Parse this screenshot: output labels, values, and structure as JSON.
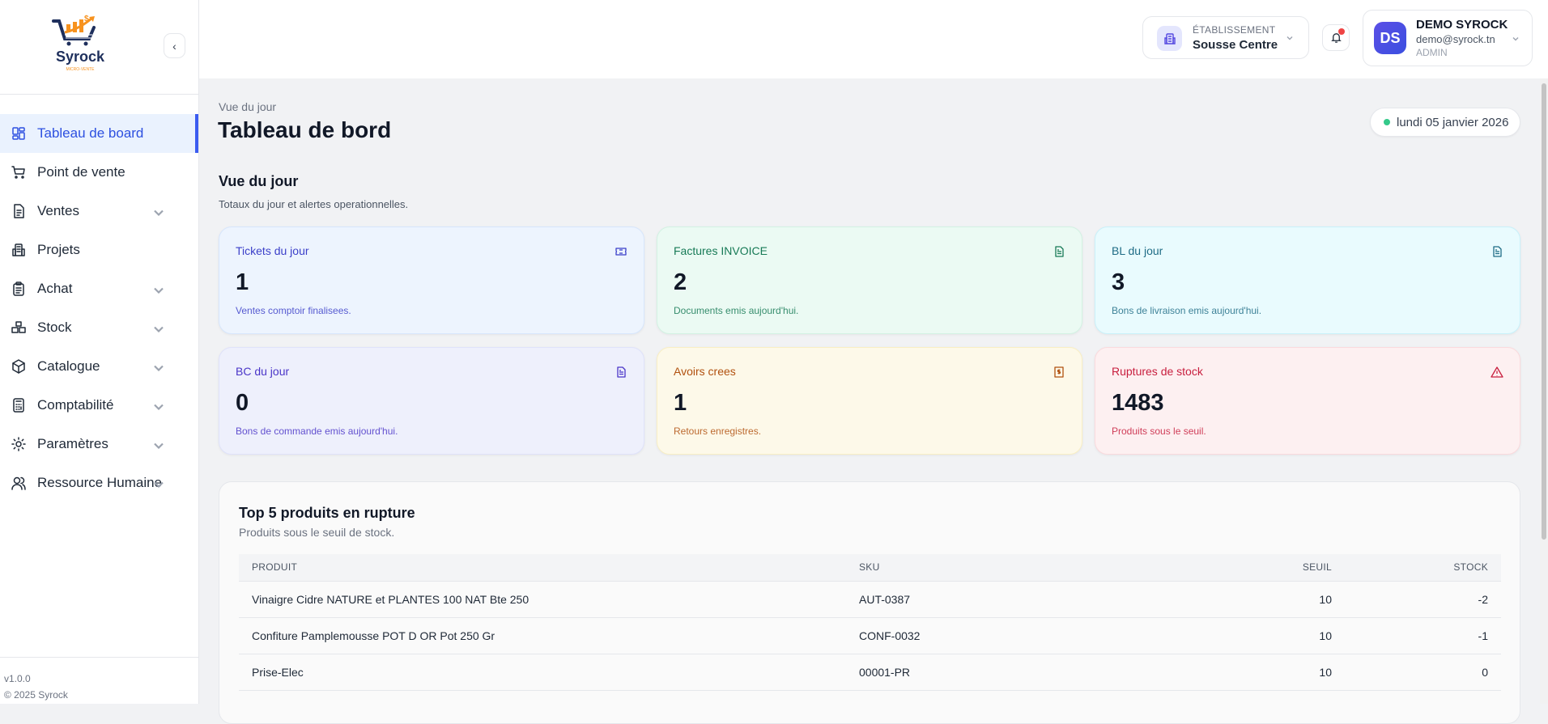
{
  "brand": {
    "name": "Syrock",
    "tagline": "MICRO-VENTE"
  },
  "sidebar": {
    "items": [
      {
        "label": "Tableau de board",
        "icon": "dashboard-icon",
        "active": true,
        "expandable": false
      },
      {
        "label": "Point de vente",
        "icon": "cart-icon",
        "expandable": false
      },
      {
        "label": "Ventes",
        "icon": "document-icon",
        "expandable": true
      },
      {
        "label": "Projets",
        "icon": "building-icon",
        "expandable": false
      },
      {
        "label": "Achat",
        "icon": "clipboard-icon",
        "expandable": true
      },
      {
        "label": "Stock",
        "icon": "boxes-icon",
        "expandable": true
      },
      {
        "label": "Catalogue",
        "icon": "package-icon",
        "expandable": true
      },
      {
        "label": "Comptabilité",
        "icon": "calculator-icon",
        "expandable": true
      },
      {
        "label": "Paramètres",
        "icon": "gear-icon",
        "expandable": true
      },
      {
        "label": "Ressource Humaine",
        "icon": "users-icon",
        "expandable": true
      }
    ],
    "version": "v1.0.0",
    "copyright": "© 2025 Syrock"
  },
  "header": {
    "etablissement_label": "ÉTABLISSEMENT",
    "etablissement_value": "Sousse Centre",
    "user": {
      "initials": "DS",
      "name": "DEMO SYROCK",
      "email": "demo@syrock.tn",
      "role": "ADMIN"
    }
  },
  "page": {
    "eyebrow": "Vue du jour",
    "title": "Tableau de bord",
    "date": "lundi 05 janvier 2026",
    "section_title": "Vue du jour",
    "section_desc": "Totaux du jour et alertes operationnelles."
  },
  "cards": [
    {
      "title": "Tickets du jour",
      "value": "1",
      "desc": "Ventes comptoir finalisees.",
      "icon": "ticket-icon",
      "bg": "#edf4fe",
      "border": "#d7e6fc",
      "color": "#3b3fc9"
    },
    {
      "title": "Factures INVOICE",
      "value": "2",
      "desc": "Documents emis aujourd'hui.",
      "icon": "file-icon",
      "bg": "#ebfaf3",
      "border": "#d3f2e3",
      "color": "#177a56"
    },
    {
      "title": "BL du jour",
      "value": "3",
      "desc": "Bons de livraison emis aujourd'hui.",
      "icon": "file-icon",
      "bg": "#e9fbfe",
      "border": "#c9f1fa",
      "color": "#1f6c86"
    },
    {
      "title": "BC du jour",
      "value": "0",
      "desc": "Bons de commande emis aujourd'hui.",
      "icon": "file-icon",
      "bg": "#eef0fc",
      "border": "#dfe2fa",
      "color": "#4a35c8"
    },
    {
      "title": "Avoirs crees",
      "value": "1",
      "desc": "Retours enregistres.",
      "icon": "receipt-icon",
      "bg": "#fdf9e9",
      "border": "#f9efc4",
      "color": "#b1510f"
    },
    {
      "title": "Ruptures de stock",
      "value": "1483",
      "desc": "Produits sous le seuil.",
      "icon": "warning-icon",
      "bg": "#fdf0f1",
      "border": "#fadadd",
      "color": "#c81e3e"
    }
  ],
  "table": {
    "title": "Top 5 produits en rupture",
    "subtitle": "Produits sous le seuil de stock.",
    "columns": [
      "PRODUIT",
      "SKU",
      "SEUIL",
      "STOCK"
    ],
    "rows": [
      [
        "Vinaigre Cidre NATURE et PLANTES 100 NAT Bte 250",
        "AUT-0387",
        "10",
        "-2"
      ],
      [
        "Confiture Pamplemousse POT D OR Pot 250 Gr",
        "CONF-0032",
        "10",
        "-1"
      ],
      [
        "Prise-Elec",
        "00001-PR",
        "10",
        "0"
      ]
    ]
  }
}
